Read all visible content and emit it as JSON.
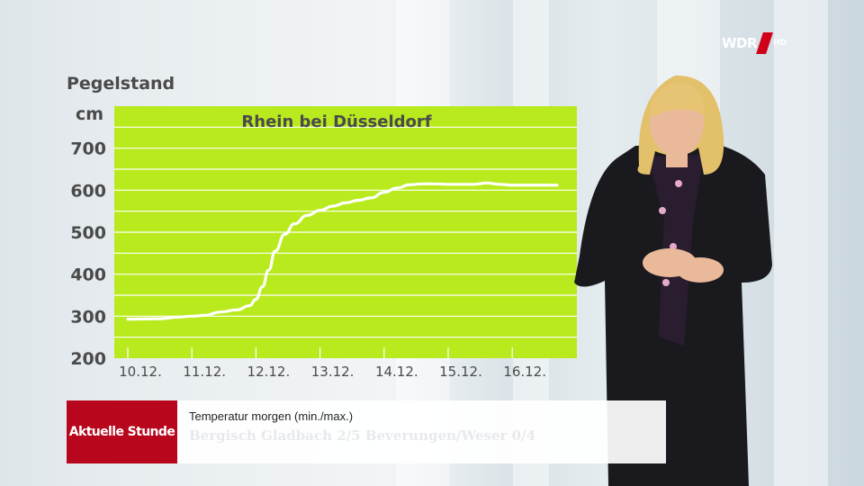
{
  "broadcast": {
    "channel_logo": "WDR",
    "channel_logo_suffix": "HD"
  },
  "chart_data": {
    "type": "line",
    "title": "Rhein bei Düsseldorf",
    "ylabel": "Pegelstand",
    "yunit": "cm",
    "ylim": [
      200,
      800
    ],
    "yticks": [
      200,
      300,
      400,
      500,
      600,
      700
    ],
    "categories": [
      "10.12.",
      "11.12.",
      "12.12.",
      "13.12.",
      "14.12.",
      "15.12.",
      "16.12."
    ],
    "grid": true,
    "background_color": "#b9ea1e",
    "line_color": "#ffffff",
    "series": [
      {
        "x": [
          0,
          0.5,
          0.8,
          1.0,
          1.2,
          1.45,
          1.7,
          1.9,
          2.0,
          2.1,
          2.2,
          2.3,
          2.45,
          2.6,
          2.8,
          3.0,
          3.2,
          3.4,
          3.6,
          3.8,
          4.0,
          4.2,
          4.4,
          4.6,
          4.8,
          5.0,
          5.2,
          5.4,
          5.6,
          5.8,
          6.0,
          6.2,
          6.4,
          6.55,
          6.7
        ],
        "values": [
          293,
          294,
          298,
          300,
          302,
          310,
          315,
          325,
          340,
          370,
          410,
          455,
          495,
          520,
          540,
          552,
          562,
          570,
          576,
          582,
          595,
          605,
          613,
          615,
          615,
          614,
          614,
          614,
          617,
          614,
          612,
          612,
          612,
          612,
          612
        ]
      }
    ]
  },
  "ticker": {
    "brand": "Aktuelle Stunde",
    "title": "Temperatur morgen (min./max.)",
    "subtitle": "Bergisch Gladbach 2/5   Beverungen/Weser 0/4"
  }
}
